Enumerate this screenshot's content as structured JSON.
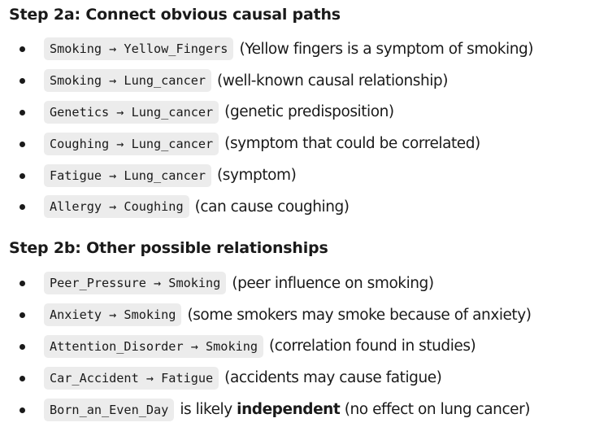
{
  "section1": {
    "heading": "Step 2a: Connect obvious causal paths",
    "items": [
      {
        "code": "Smoking → Yellow_Fingers",
        "desc": "(Yellow fingers is a symptom of smoking)"
      },
      {
        "code": "Smoking → Lung_cancer",
        "desc": "(well-known causal relationship)"
      },
      {
        "code": "Genetics → Lung_cancer",
        "desc": "(genetic predisposition)"
      },
      {
        "code": "Coughing → Lung_cancer",
        "desc": "(symptom that could be correlated)"
      },
      {
        "code": "Fatigue → Lung_cancer",
        "desc": "(symptom)"
      },
      {
        "code": "Allergy → Coughing",
        "desc": "(can cause coughing)"
      }
    ]
  },
  "section2": {
    "heading": "Step 2b: Other possible relationships",
    "items": [
      {
        "code": "Peer_Pressure → Smoking",
        "desc": "(peer influence on smoking)"
      },
      {
        "code": "Anxiety → Smoking",
        "desc": "(some smokers may smoke because of anxiety)"
      },
      {
        "code": "Attention_Disorder → Smoking",
        "desc": "(correlation found in studies)"
      },
      {
        "code": "Car_Accident → Fatigue",
        "desc": "(accidents may cause fatigue)"
      },
      {
        "code": "Born_an_Even_Day",
        "desc_prefix": "is likely",
        "desc_bold": "independent",
        "desc_suffix": "(no effect on lung cancer)"
      }
    ]
  }
}
